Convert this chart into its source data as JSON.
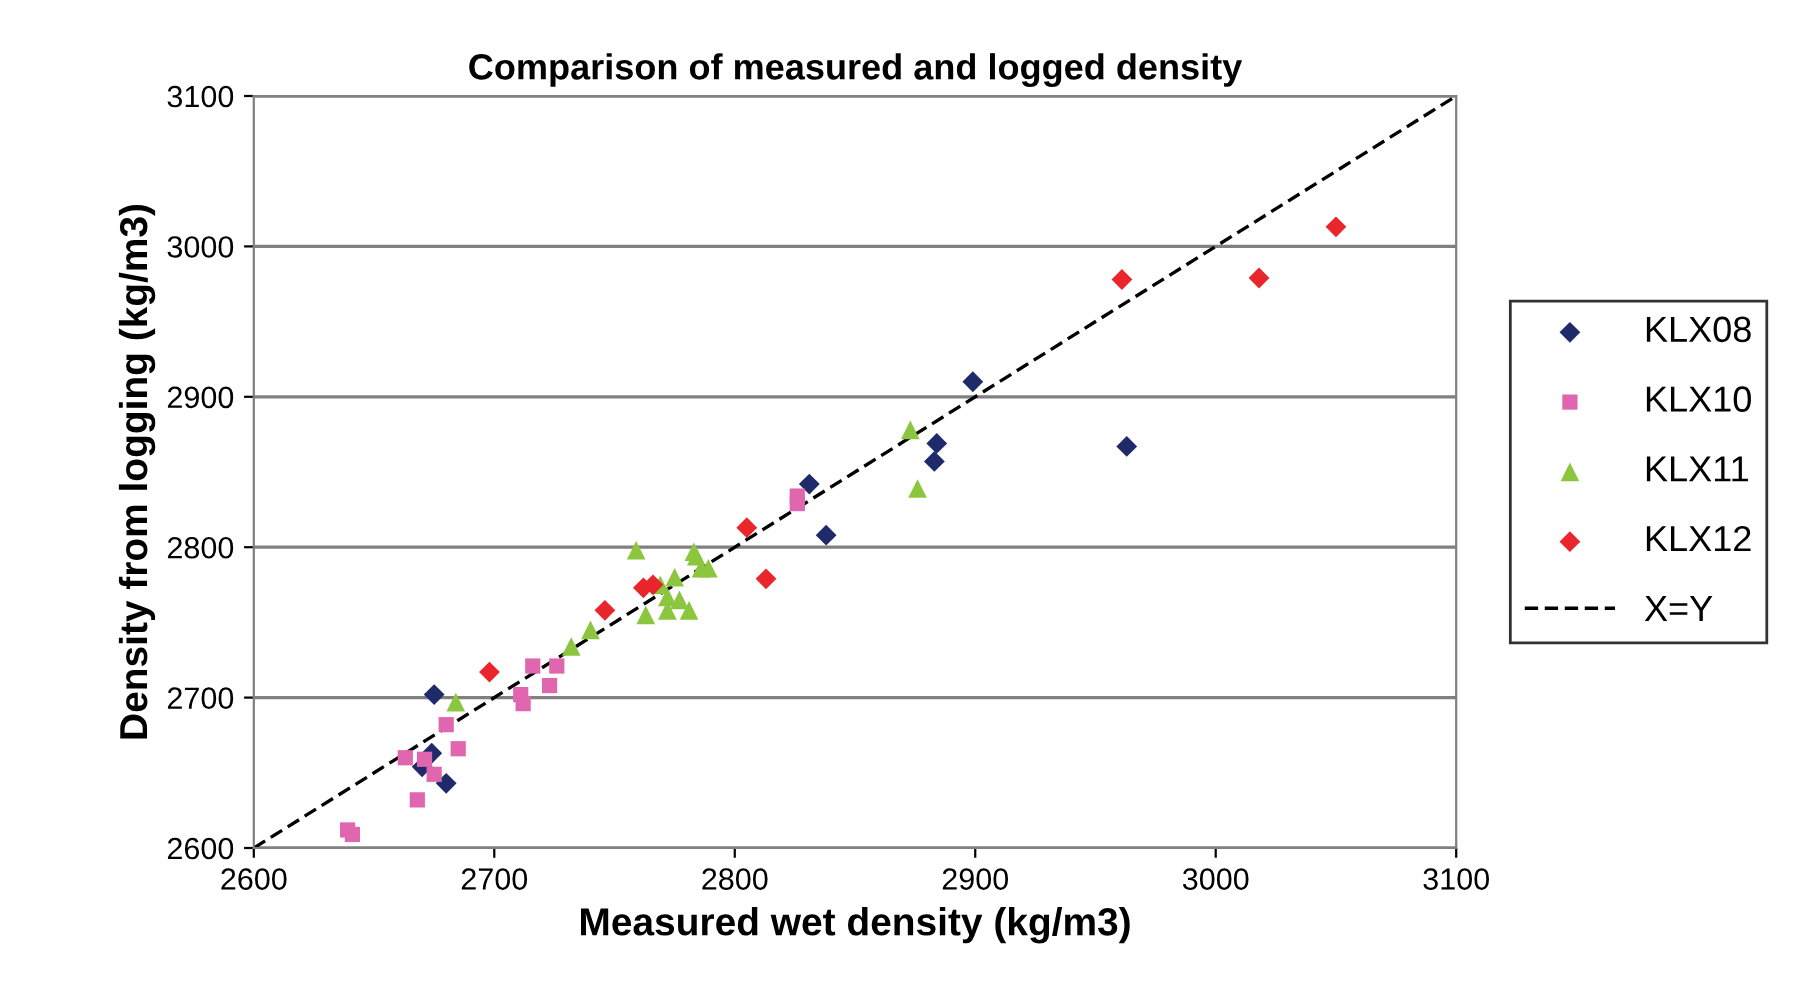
{
  "chart_data": {
    "type": "scatter",
    "title": "Comparison of measured and logged density",
    "xlabel": "Measured wet density (kg/m3)",
    "ylabel": "Density from logging (kg/m3)",
    "xlim": [
      2600,
      3100
    ],
    "ylim": [
      2600,
      3100
    ],
    "xticks": [
      2600,
      2700,
      2800,
      2900,
      3000,
      3100
    ],
    "yticks": [
      2600,
      2700,
      2800,
      2900,
      3000,
      3100
    ],
    "grid": "y",
    "legend": "right",
    "series": [
      {
        "name": "KLX08",
        "color": "#1f2a6b",
        "marker": "diamond",
        "x": [
          2675,
          2674,
          2670,
          2680,
          2838,
          2899,
          2884,
          2883,
          2963,
          2831
        ],
        "values": [
          2702,
          2663,
          2654,
          2643,
          2808,
          2910,
          2869,
          2857,
          2867,
          2842
        ]
      },
      {
        "name": "KLX10",
        "color": "#e066b0",
        "marker": "square",
        "x": [
          2680,
          2663,
          2671,
          2685,
          2675,
          2668,
          2639,
          2641,
          2716,
          2726,
          2711,
          2712,
          2723,
          2826,
          2826
        ],
        "values": [
          2682,
          2660,
          2659,
          2666,
          2649,
          2632,
          2612,
          2609,
          2721,
          2721,
          2702,
          2696,
          2708,
          2829,
          2834
        ]
      },
      {
        "name": "KLX11",
        "color": "#8cc63f",
        "marker": "triangle",
        "x": [
          2684,
          2759,
          2783,
          2784,
          2786,
          2789,
          2775,
          2769,
          2772,
          2777,
          2781,
          2772,
          2763,
          2740,
          2732,
          2873,
          2876
        ],
        "values": [
          2697,
          2798,
          2797,
          2794,
          2786,
          2786,
          2780,
          2775,
          2767,
          2765,
          2758,
          2758,
          2755,
          2745,
          2734,
          2878,
          2839
        ]
      },
      {
        "name": "KLX12",
        "color": "#e8262b",
        "marker": "diamond",
        "x": [
          2698,
          2805,
          2813,
          2762,
          2766,
          2746,
          2961,
          3018,
          3050
        ],
        "values": [
          2717,
          2813,
          2779,
          2773,
          2775,
          2758,
          2978,
          2979,
          3013
        ]
      },
      {
        "name": "X=Y",
        "type": "line",
        "color": "#000000",
        "line_style": "dashed",
        "marker": "none",
        "x": [
          2600,
          3100
        ],
        "values": [
          2600,
          3100
        ]
      }
    ]
  }
}
